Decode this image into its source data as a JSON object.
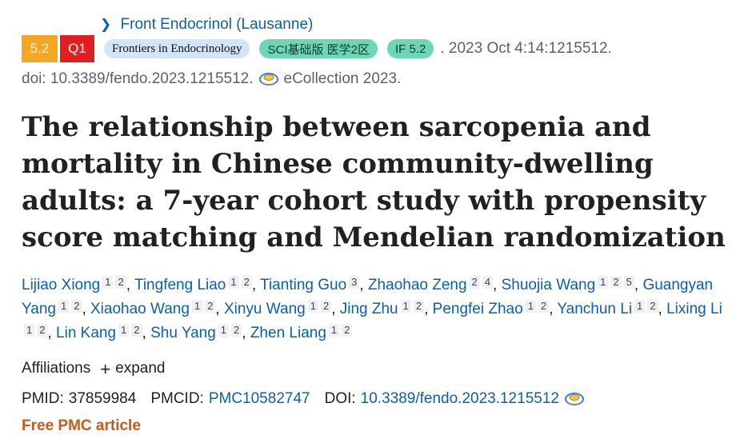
{
  "journal": {
    "link_text": "Front Endocrinol (Lausanne)"
  },
  "badges": {
    "impact_score": "5.2",
    "quartile": "Q1",
    "journal_name": "Frontiers in Endocrinology",
    "sci_category": "SCI基础版 医学2区",
    "impact_factor": "IF 5.2"
  },
  "citation": {
    "date_volume": ". 2023 Oct 4:14:1215512.",
    "doi_prefix": "doi: 10.3389/fendo.2023.1215512.",
    "ecollection": "eCollection 2023."
  },
  "article": {
    "title": "The relationship between sarcopenia and mortality in Chinese community-dwelling adults: a 7-year cohort study with propensity score matching and Mendelian randomization"
  },
  "authors": [
    {
      "name": "Lijiao Xiong",
      "affs": [
        "1",
        "2"
      ]
    },
    {
      "name": "Tingfeng Liao",
      "affs": [
        "1",
        "2"
      ]
    },
    {
      "name": "Tianting Guo",
      "affs": [
        "3"
      ]
    },
    {
      "name": "Zhaohao Zeng",
      "affs": [
        "2",
        "4"
      ]
    },
    {
      "name": "Shuojia Wang",
      "affs": [
        "1",
        "2",
        "5"
      ]
    },
    {
      "name": "Guangyan Yang",
      "affs": [
        "1",
        "2"
      ]
    },
    {
      "name": "Xiaohao Wang",
      "affs": [
        "1",
        "2"
      ]
    },
    {
      "name": "Xinyu Wang",
      "affs": [
        "1",
        "2"
      ]
    },
    {
      "name": "Jing Zhu",
      "affs": [
        "1",
        "2"
      ]
    },
    {
      "name": "Pengfei Zhao",
      "affs": [
        "1",
        "2"
      ]
    },
    {
      "name": "Yanchun Li",
      "affs": [
        "1",
        "2"
      ]
    },
    {
      "name": "Lixing Li",
      "affs": [
        "1",
        "2"
      ]
    },
    {
      "name": "Lin Kang",
      "affs": [
        "1",
        "2"
      ]
    },
    {
      "name": "Shu Yang",
      "affs": [
        "1",
        "2"
      ]
    },
    {
      "name": "Zhen Liang",
      "affs": [
        "1",
        "2"
      ]
    }
  ],
  "affiliations": {
    "label": "Affiliations",
    "expand_label": "expand"
  },
  "identifiers": {
    "pmid_label": "PMID:",
    "pmid": "37859984",
    "pmcid_label": "PMCID:",
    "pmcid": "PMC10582747",
    "doi_label": "DOI:",
    "doi": "10.3389/fendo.2023.1215512"
  },
  "free_article": "Free PMC article",
  "colors": {
    "link": "#0b5fae",
    "score_badge": "#f5a623",
    "quartile_badge": "#e02020",
    "pill_blue": "#d3e5fa",
    "pill_green": "#6dd6b4",
    "free_pmc": "#c45a1c"
  },
  "icons": {
    "journal_chevron": "chevron-right-icon",
    "external": "external-link-icon"
  }
}
